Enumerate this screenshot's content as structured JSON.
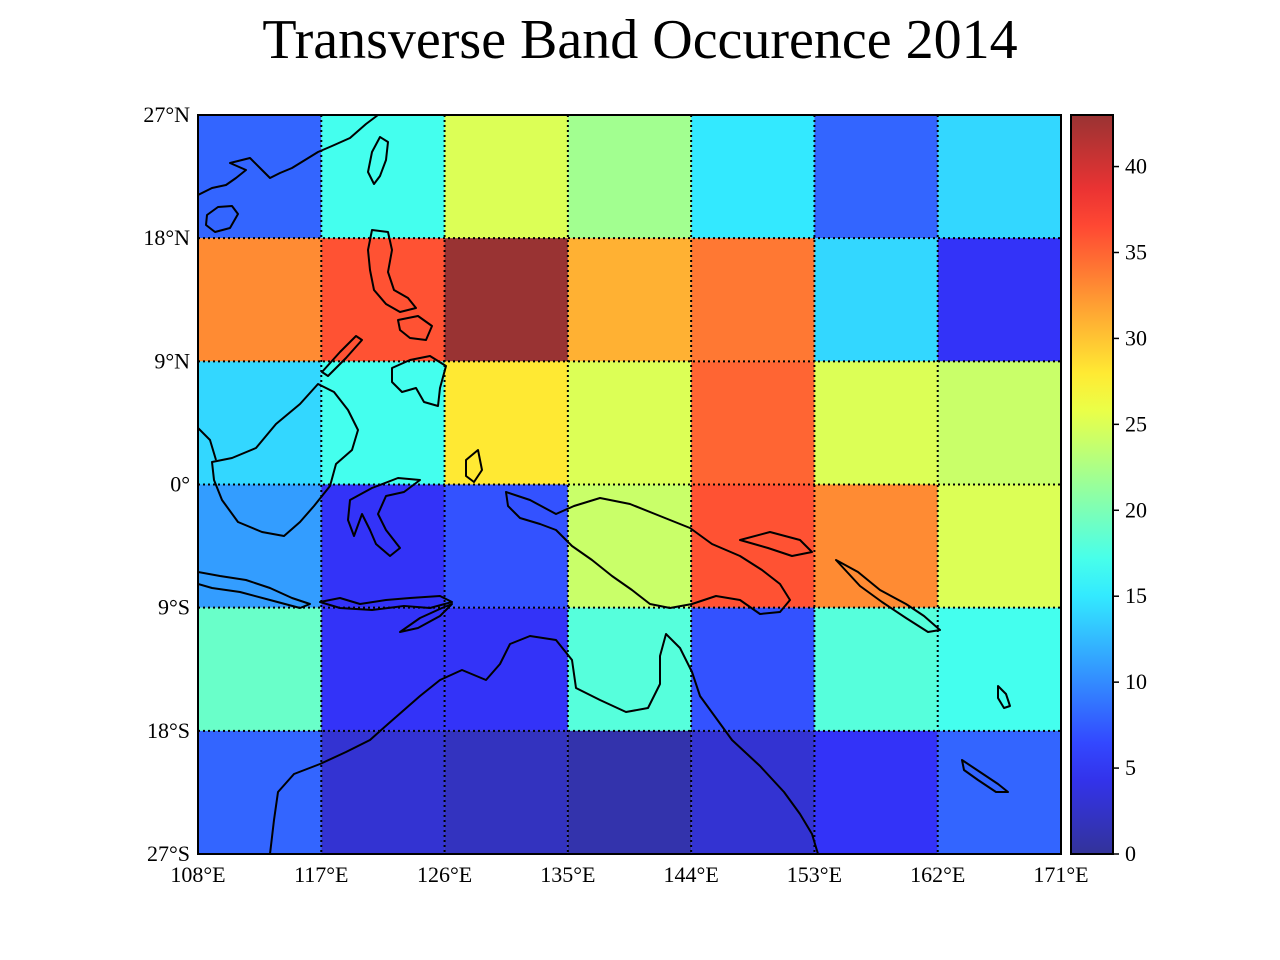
{
  "chart_data": {
    "type": "heatmap",
    "title": "Transverse Band Occurence 2014",
    "xlabel": "",
    "ylabel": "",
    "x_ticks": [
      "108°E",
      "117°E",
      "126°E",
      "135°E",
      "144°E",
      "153°E",
      "162°E",
      "171°E"
    ],
    "y_ticks": [
      "27°N",
      "18°N",
      "9°N",
      "0°",
      "9°S",
      "18°S",
      "27°S"
    ],
    "xlim": [
      108,
      171
    ],
    "ylim": [
      -27,
      27
    ],
    "cell_size_deg": 9,
    "grid": "dotted",
    "colormap": "jet",
    "colorbar": {
      "min": 0,
      "max": 43,
      "ticks": [
        0,
        5,
        10,
        15,
        20,
        25,
        30,
        35,
        40
      ],
      "placement": "right"
    },
    "rows_lat_centers": [
      22.5,
      13.5,
      4.5,
      -4.5,
      -13.5,
      -22.5
    ],
    "cols_lon_centers": [
      112.5,
      121.5,
      130.5,
      139.5,
      148.5,
      157.5,
      166.5
    ],
    "values": [
      [
        8,
        17,
        25,
        22,
        15,
        8,
        14
      ],
      [
        33,
        36,
        43,
        31,
        34,
        14,
        5
      ],
      [
        14,
        17,
        28,
        25,
        35,
        25,
        24
      ],
      [
        11,
        5,
        7,
        24,
        36,
        33,
        25
      ],
      [
        19,
        5,
        5,
        18,
        7,
        18,
        17
      ],
      [
        8,
        3,
        2,
        1,
        3,
        5,
        8
      ]
    ],
    "colors": {
      "coastline": "#000000",
      "gridline": "#000000"
    }
  }
}
